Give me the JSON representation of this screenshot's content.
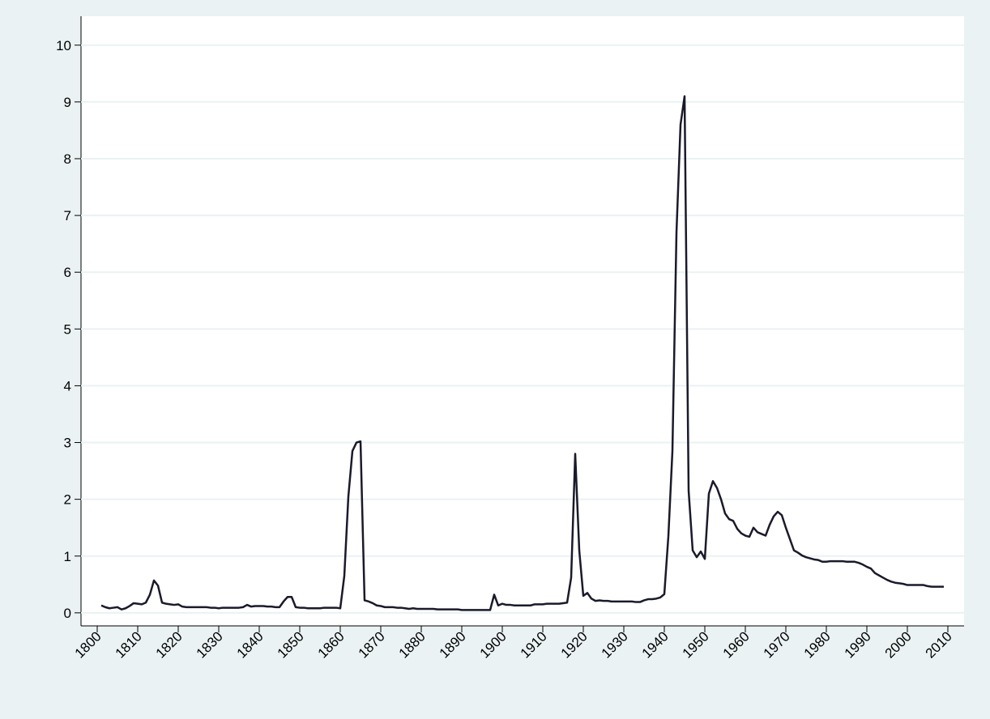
{
  "chart_data": {
    "type": "line",
    "x": [
      1801,
      1802,
      1803,
      1804,
      1805,
      1806,
      1807,
      1808,
      1809,
      1810,
      1811,
      1812,
      1813,
      1814,
      1815,
      1816,
      1817,
      1818,
      1819,
      1820,
      1821,
      1822,
      1823,
      1824,
      1825,
      1826,
      1827,
      1828,
      1829,
      1830,
      1831,
      1832,
      1833,
      1834,
      1835,
      1836,
      1837,
      1838,
      1839,
      1840,
      1841,
      1842,
      1843,
      1844,
      1845,
      1846,
      1847,
      1848,
      1849,
      1850,
      1851,
      1852,
      1853,
      1854,
      1855,
      1856,
      1857,
      1858,
      1859,
      1860,
      1861,
      1862,
      1863,
      1864,
      1865,
      1866,
      1867,
      1868,
      1869,
      1870,
      1871,
      1872,
      1873,
      1874,
      1875,
      1876,
      1877,
      1878,
      1879,
      1880,
      1881,
      1882,
      1883,
      1884,
      1885,
      1886,
      1887,
      1888,
      1889,
      1890,
      1891,
      1892,
      1893,
      1894,
      1895,
      1896,
      1897,
      1898,
      1899,
      1900,
      1901,
      1902,
      1903,
      1904,
      1905,
      1906,
      1907,
      1908,
      1909,
      1910,
      1911,
      1912,
      1913,
      1914,
      1915,
      1916,
      1917,
      1918,
      1919,
      1920,
      1921,
      1922,
      1923,
      1924,
      1925,
      1926,
      1927,
      1928,
      1929,
      1930,
      1931,
      1932,
      1933,
      1934,
      1935,
      1936,
      1937,
      1938,
      1939,
      1940,
      1941,
      1942,
      1943,
      1944,
      1945,
      1946,
      1947,
      1948,
      1949,
      1950,
      1951,
      1952,
      1953,
      1954,
      1955,
      1956,
      1957,
      1958,
      1959,
      1960,
      1961,
      1962,
      1963,
      1964,
      1965,
      1966,
      1967,
      1968,
      1969,
      1970,
      1971,
      1972,
      1973,
      1974,
      1975,
      1976,
      1977,
      1978,
      1979,
      1980,
      1981,
      1982,
      1983,
      1984,
      1985,
      1986,
      1987,
      1988,
      1989,
      1990,
      1991,
      1992,
      1993,
      1994,
      1995,
      1996,
      1997,
      1998,
      1999,
      2000,
      2001,
      2002,
      2003,
      2004,
      2005,
      2006,
      2007,
      2008,
      2009
    ],
    "series": [
      {
        "color": "#1a1a2a",
        "values": [
          0.13,
          0.1,
          0.08,
          0.09,
          0.1,
          0.06,
          0.08,
          0.12,
          0.17,
          0.16,
          0.15,
          0.18,
          0.32,
          0.57,
          0.48,
          0.18,
          0.16,
          0.15,
          0.14,
          0.15,
          0.11,
          0.1,
          0.1,
          0.1,
          0.1,
          0.1,
          0.1,
          0.09,
          0.09,
          0.08,
          0.09,
          0.09,
          0.09,
          0.09,
          0.09,
          0.1,
          0.14,
          0.11,
          0.12,
          0.12,
          0.12,
          0.11,
          0.11,
          0.1,
          0.1,
          0.2,
          0.28,
          0.28,
          0.1,
          0.09,
          0.09,
          0.08,
          0.08,
          0.08,
          0.08,
          0.09,
          0.09,
          0.09,
          0.09,
          0.08,
          0.65,
          2.05,
          2.85,
          3.0,
          3.02,
          0.22,
          0.2,
          0.17,
          0.13,
          0.12,
          0.1,
          0.1,
          0.1,
          0.09,
          0.09,
          0.08,
          0.07,
          0.08,
          0.07,
          0.07,
          0.07,
          0.07,
          0.07,
          0.06,
          0.06,
          0.06,
          0.06,
          0.06,
          0.06,
          0.05,
          0.05,
          0.05,
          0.05,
          0.05,
          0.05,
          0.05,
          0.05,
          0.32,
          0.13,
          0.16,
          0.14,
          0.14,
          0.13,
          0.13,
          0.13,
          0.13,
          0.13,
          0.15,
          0.15,
          0.15,
          0.16,
          0.16,
          0.16,
          0.16,
          0.17,
          0.18,
          0.62,
          2.8,
          1.1,
          0.3,
          0.35,
          0.25,
          0.21,
          0.22,
          0.21,
          0.21,
          0.2,
          0.2,
          0.2,
          0.2,
          0.2,
          0.2,
          0.19,
          0.19,
          0.22,
          0.24,
          0.24,
          0.25,
          0.27,
          0.33,
          1.35,
          2.85,
          6.7,
          8.6,
          9.1,
          2.15,
          1.1,
          0.98,
          1.08,
          0.95,
          2.1,
          2.32,
          2.2,
          2.0,
          1.75,
          1.65,
          1.62,
          1.48,
          1.4,
          1.36,
          1.34,
          1.5,
          1.42,
          1.39,
          1.36,
          1.55,
          1.7,
          1.78,
          1.72,
          1.5,
          1.3,
          1.1,
          1.06,
          1.01,
          0.98,
          0.96,
          0.94,
          0.93,
          0.9,
          0.9,
          0.91,
          0.91,
          0.91,
          0.91,
          0.9,
          0.9,
          0.9,
          0.88,
          0.85,
          0.81,
          0.78,
          0.7,
          0.66,
          0.62,
          0.58,
          0.55,
          0.53,
          0.52,
          0.51,
          0.49,
          0.49,
          0.49,
          0.49,
          0.49,
          0.47,
          0.46,
          0.46,
          0.46,
          0.46
        ]
      }
    ],
    "xlim": [
      1796,
      2014
    ],
    "ylim": [
      -0.23,
      10.51
    ],
    "xticks": [
      1800,
      1810,
      1820,
      1830,
      1840,
      1850,
      1860,
      1870,
      1880,
      1890,
      1900,
      1910,
      1920,
      1930,
      1940,
      1950,
      1960,
      1970,
      1980,
      1990,
      2000,
      2010
    ],
    "yticks": [
      0,
      1,
      2,
      3,
      4,
      5,
      6,
      7,
      8,
      9,
      10
    ],
    "grid": true
  }
}
